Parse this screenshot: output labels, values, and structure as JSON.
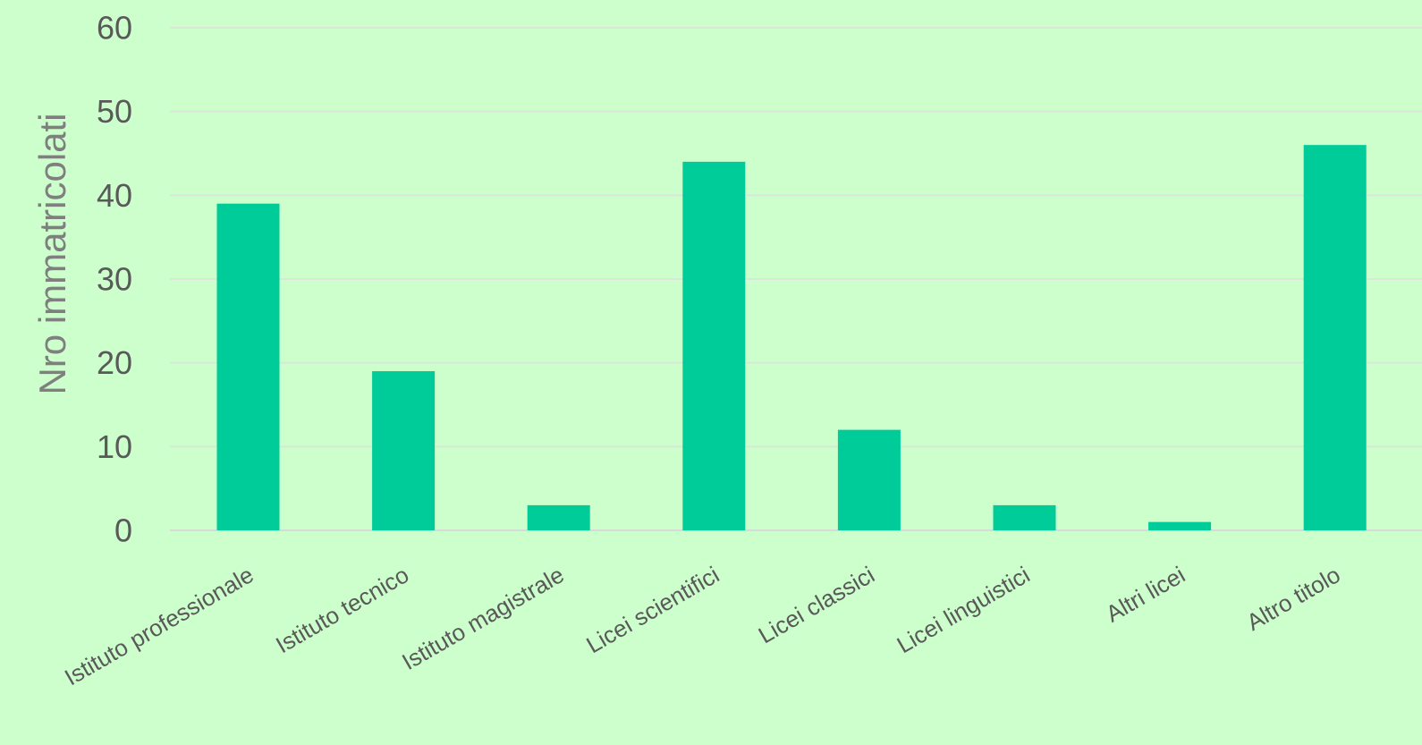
{
  "chart_data": {
    "type": "bar",
    "title": "",
    "xlabel": "",
    "ylabel": "Nro immatricolati",
    "categories": [
      "Istituto professionale",
      "Istituto tecnico",
      "Istituto magistrale",
      "Licei scientifici",
      "Licei classici",
      "Licei linguistici",
      "Altri licei",
      "Altro titolo"
    ],
    "values": [
      39,
      19,
      3,
      44,
      12,
      3,
      1,
      46
    ],
    "ylim": [
      0,
      60
    ],
    "yticks": [
      0,
      10,
      20,
      30,
      40,
      50,
      60
    ],
    "grid": true,
    "legend": "none",
    "colors": {
      "background": "#ccffcc",
      "bar": "#00cc99",
      "grid": "#d9e6d9",
      "text": "#595959",
      "axis_title": "#7f7f7f"
    }
  }
}
